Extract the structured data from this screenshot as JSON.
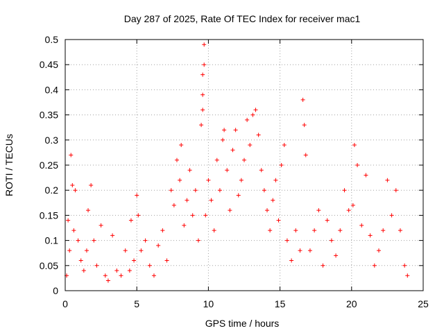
{
  "chart_data": {
    "type": "scatter",
    "title": "Day 287 of 2025, Rate Of TEC Index for receiver mac1",
    "xlabel": "GPS time / hours",
    "ylabel": "ROTI / TECUs",
    "xlim": [
      0,
      25
    ],
    "ylim": [
      0,
      0.5
    ],
    "x_ticks": [
      "0",
      "5",
      "10",
      "15",
      "20",
      "25"
    ],
    "y_ticks": [
      "0",
      "0.05",
      "0.1",
      "0.15",
      "0.2",
      "0.25",
      "0.3",
      "0.35",
      "0.4",
      "0.45",
      "0.5"
    ],
    "grid": true,
    "marker": "+",
    "color": "#ff0000",
    "series": [
      {
        "x": [
          0.1,
          0.2,
          0.3,
          0.4,
          0.5,
          0.6,
          0.7,
          0.9,
          1.1,
          1.3,
          1.5,
          1.6,
          1.8,
          2.0,
          2.2,
          2.5,
          2.8,
          3.0,
          3.3,
          3.6,
          3.9,
          4.2,
          4.5,
          4.6,
          4.8,
          5.0,
          5.1,
          5.3,
          5.6,
          5.9,
          6.2,
          6.5,
          6.8,
          7.1,
          7.4,
          7.6,
          7.8,
          8.0,
          8.1,
          8.3,
          8.5,
          8.7,
          8.9,
          9.1,
          9.3,
          9.5,
          9.6,
          9.6,
          9.7,
          9.7,
          9.6,
          9.8,
          10.0,
          10.2,
          10.4,
          10.6,
          10.8,
          11.0,
          11.1,
          11.3,
          11.5,
          11.7,
          11.9,
          12.1,
          12.3,
          12.5,
          12.7,
          12.9,
          13.1,
          13.3,
          13.5,
          13.7,
          13.9,
          14.1,
          14.3,
          14.5,
          14.7,
          14.9,
          15.1,
          15.3,
          15.5,
          15.8,
          16.1,
          16.4,
          16.6,
          16.7,
          16.8,
          17.1,
          17.4,
          17.7,
          18.0,
          18.3,
          18.6,
          18.9,
          19.2,
          19.5,
          19.8,
          20.1,
          20.2,
          20.4,
          20.7,
          21.0,
          21.3,
          21.6,
          21.9,
          22.2,
          22.5,
          22.8,
          23.1,
          23.4,
          23.7,
          23.9
        ],
        "y": [
          0.03,
          0.14,
          0.08,
          0.27,
          0.21,
          0.12,
          0.2,
          0.1,
          0.06,
          0.04,
          0.08,
          0.16,
          0.21,
          0.1,
          0.05,
          0.13,
          0.03,
          0.02,
          0.11,
          0.04,
          0.03,
          0.08,
          0.04,
          0.14,
          0.06,
          0.19,
          0.15,
          0.08,
          0.1,
          0.05,
          0.03,
          0.09,
          0.12,
          0.06,
          0.2,
          0.17,
          0.26,
          0.22,
          0.29,
          0.13,
          0.18,
          0.24,
          0.15,
          0.2,
          0.1,
          0.33,
          0.39,
          0.43,
          0.45,
          0.49,
          0.36,
          0.15,
          0.22,
          0.18,
          0.12,
          0.26,
          0.2,
          0.3,
          0.32,
          0.24,
          0.16,
          0.28,
          0.32,
          0.19,
          0.22,
          0.26,
          0.34,
          0.29,
          0.35,
          0.36,
          0.31,
          0.24,
          0.2,
          0.16,
          0.12,
          0.18,
          0.22,
          0.14,
          0.25,
          0.29,
          0.1,
          0.06,
          0.12,
          0.08,
          0.38,
          0.33,
          0.27,
          0.08,
          0.12,
          0.16,
          0.05,
          0.14,
          0.1,
          0.07,
          0.12,
          0.2,
          0.16,
          0.17,
          0.29,
          0.25,
          0.13,
          0.23,
          0.11,
          0.05,
          0.08,
          0.12,
          0.22,
          0.15,
          0.2,
          0.12,
          0.05,
          0.03
        ]
      }
    ]
  }
}
